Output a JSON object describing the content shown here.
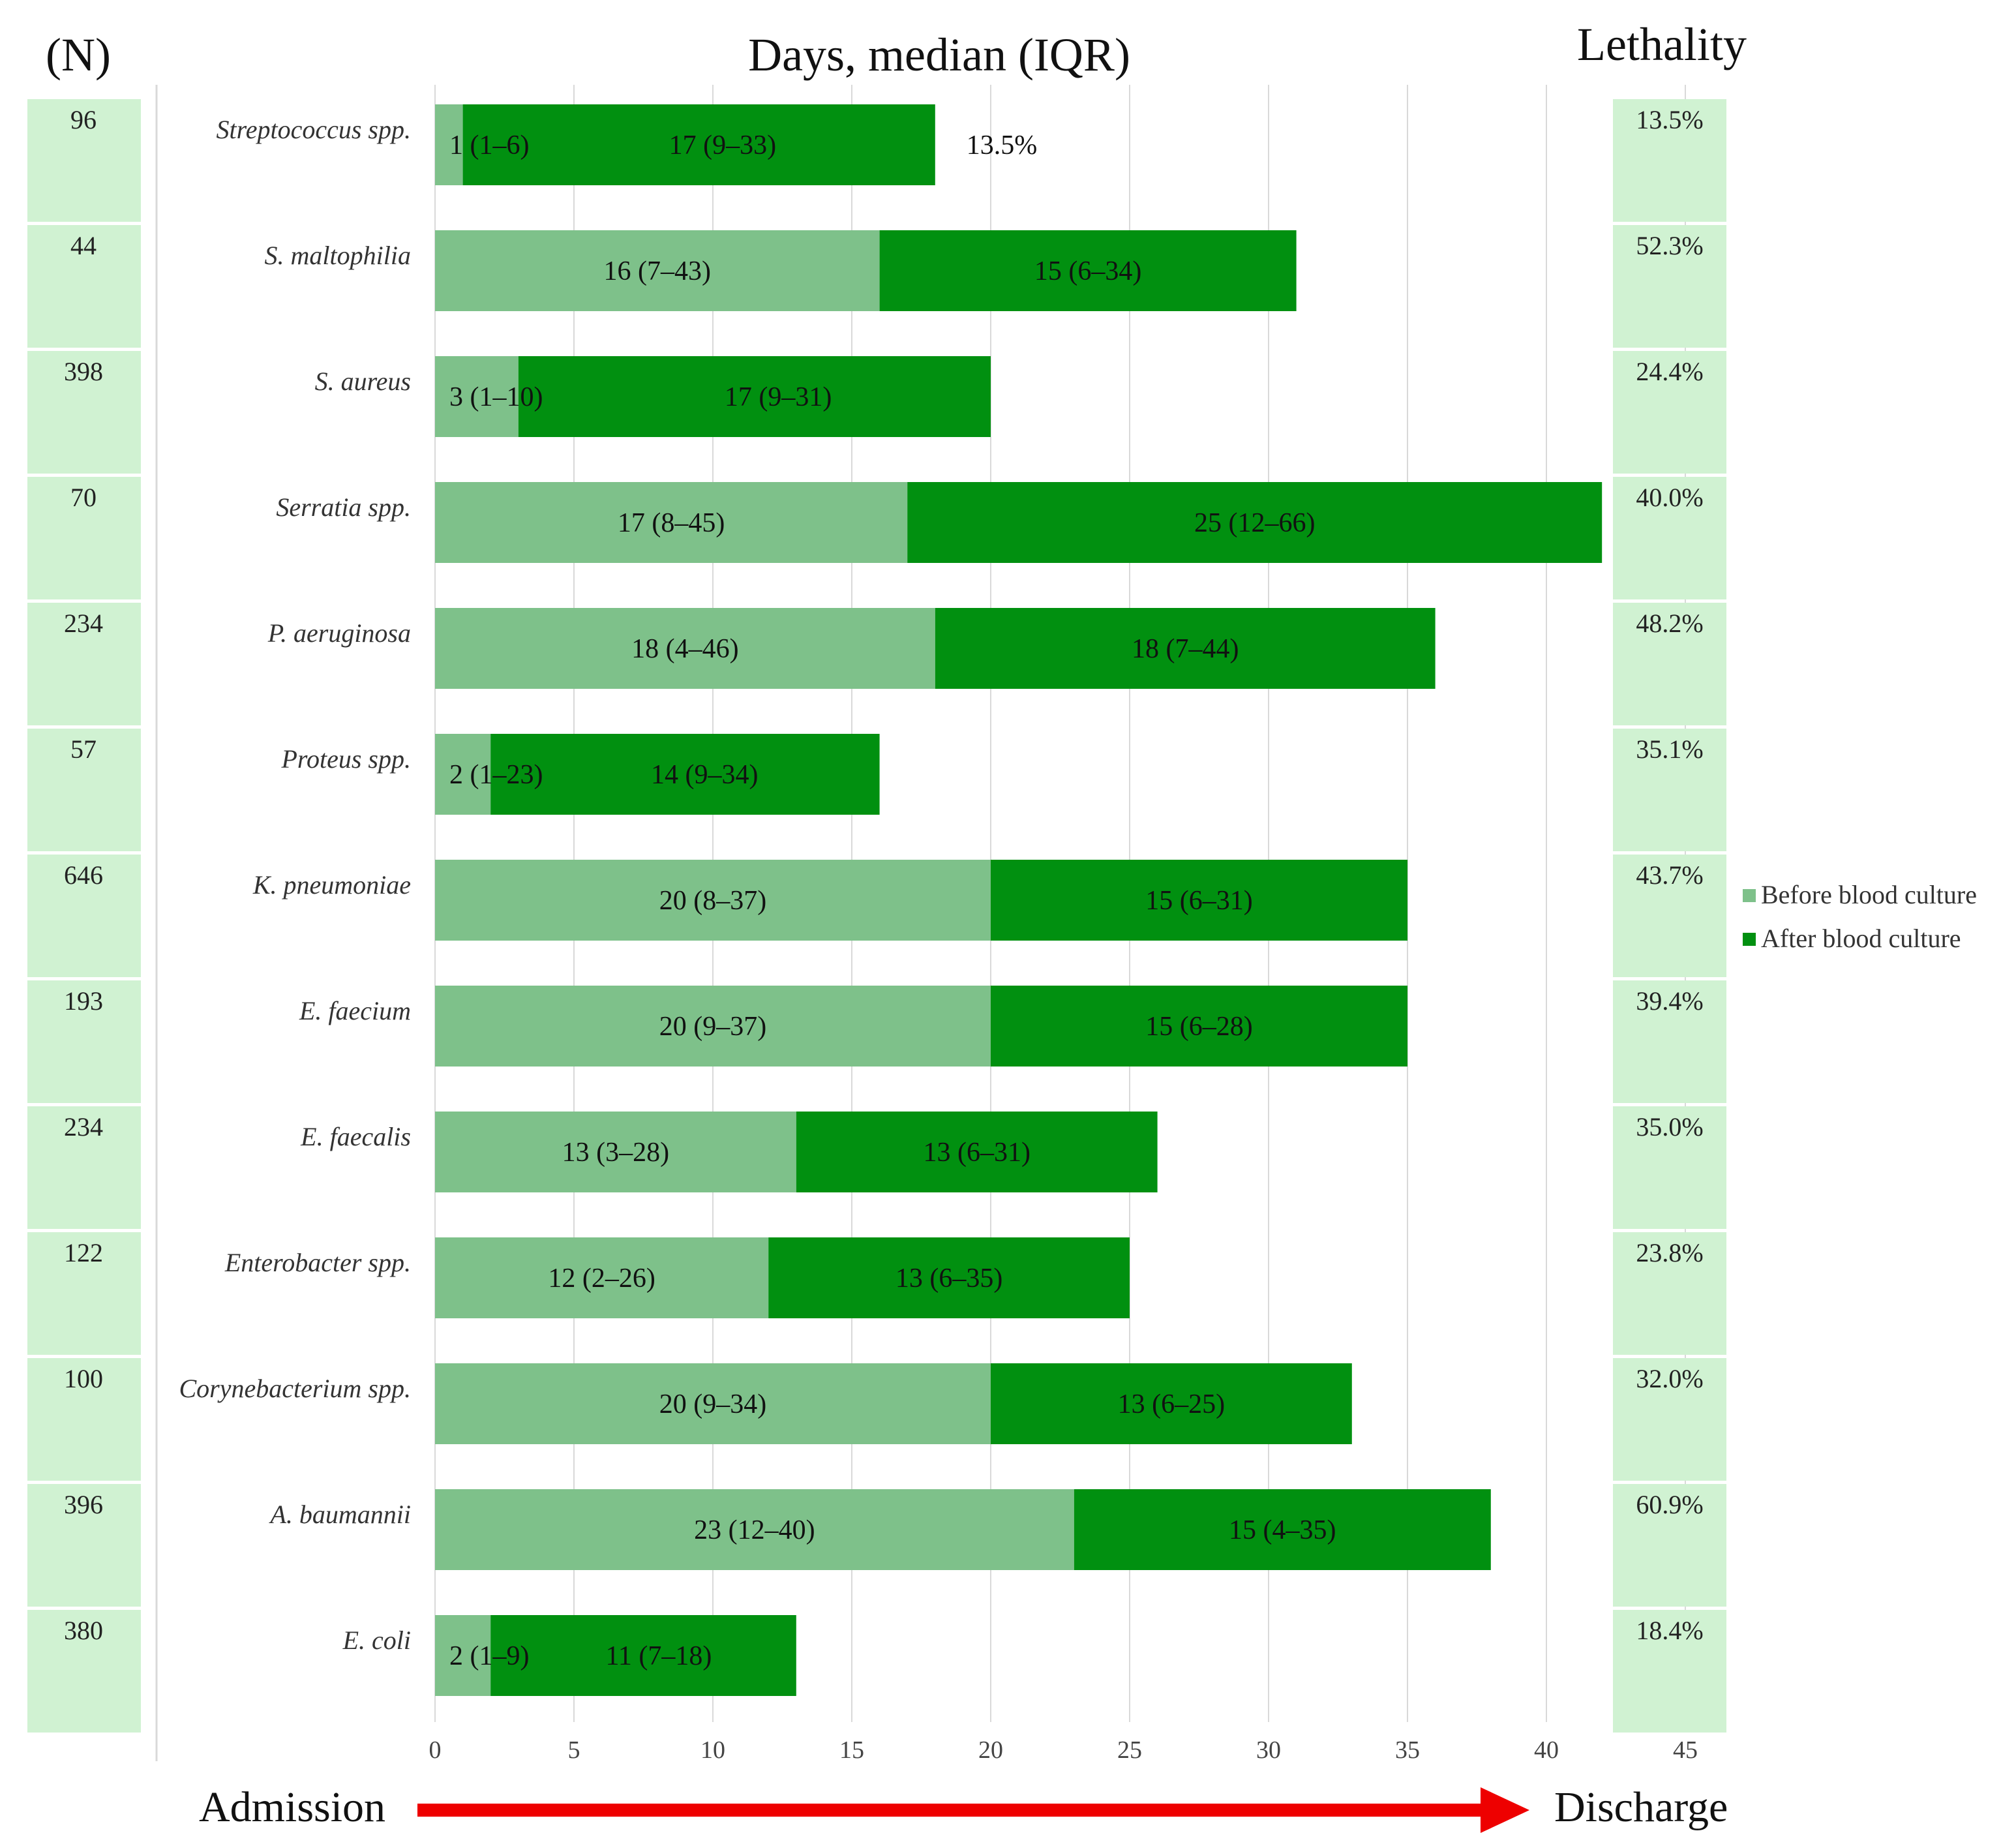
{
  "header": {
    "n_label": "(N)",
    "title": "Days, median (IQR)",
    "lethality_label": "Lethality"
  },
  "timeline": {
    "start_label": "Admission",
    "end_label": "Discharge"
  },
  "colors": {
    "before": "#7ec18a",
    "after": "#019010",
    "side_box": "#d0f2d2",
    "grid": "#d9d9d9",
    "arrow": "#ee0000"
  },
  "chart_data": {
    "type": "bar",
    "orientation": "horizontal",
    "stacked": true,
    "title": "Days, median (IQR)",
    "xlabel": "",
    "ylabel": "",
    "xlim": [
      0,
      45
    ],
    "x_ticks": [
      0,
      5,
      10,
      15,
      20,
      25,
      30,
      35,
      40,
      45
    ],
    "grid": true,
    "legend": {
      "position": "right",
      "entries": [
        "Before blood culture",
        "After blood culture"
      ]
    },
    "categories": [
      "Streptococcus spp.",
      "S. maltophilia",
      "S. aureus",
      "Serratia spp.",
      "P. aeruginosa",
      "Proteus spp.",
      "K. pneumoniae",
      "E. faecium",
      "E. faecalis",
      "Enterobacter spp.",
      "Corynebacterium spp.",
      "A. baumannii",
      "E. coli"
    ],
    "n": [
      "96",
      "44",
      "398",
      "70",
      "234",
      "57",
      "646",
      "193",
      "234",
      "122",
      "100",
      "396",
      "380"
    ],
    "lethality": [
      "13.5%",
      "52.3%",
      "24.4%",
      "40.0%",
      "48.2%",
      "35.1%",
      "43.7%",
      "39.4%",
      "35.0%",
      "23.8%",
      "32.0%",
      "60.9%",
      "18.4%"
    ],
    "series": [
      {
        "name": "Before blood culture",
        "values": [
          1,
          16,
          3,
          17,
          18,
          2,
          20,
          20,
          13,
          12,
          20,
          23,
          2
        ],
        "labels": [
          "1 (1–6)",
          "16 (7–43)",
          "3 (1–10)",
          "17 (8–45)",
          "18 (4–46)",
          "2 (1–23)",
          "20 (8–37)",
          "20 (9–37)",
          "13 (3–28)",
          "12 (2–26)",
          "20 (9–34)",
          "23 (12–40)",
          "2 (1–9)"
        ]
      },
      {
        "name": "After blood culture",
        "values": [
          17,
          15,
          17,
          25,
          18,
          14,
          15,
          15,
          13,
          13,
          13,
          15,
          11
        ],
        "labels": [
          "17 (9–33)",
          "15 (6–34)",
          "17 (9–31)",
          "25 (12–66)",
          "18 (7–44)",
          "14 (9–34)",
          "15 (6–31)",
          "15 (6–28)",
          "13 (6–31)",
          "13 (6–35)",
          "13 (6–25)",
          "15 (4–35)",
          "11  (7–18)"
        ]
      }
    ],
    "annotations": [
      "13.5%"
    ]
  }
}
